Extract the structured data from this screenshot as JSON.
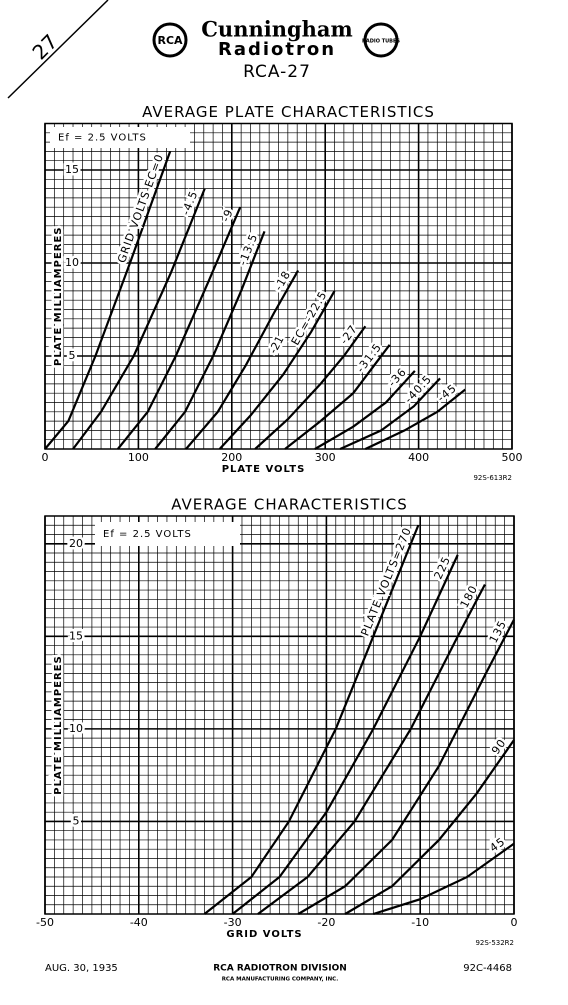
{
  "header": {
    "corner_number": "27",
    "brand": "Cunningham",
    "brand_line2": "Radiotron",
    "logo_left": "RCA",
    "logo_right": "RADIO TUBES",
    "model": "RCA-27"
  },
  "chart_data": [
    {
      "type": "line",
      "title": "AVERAGE PLATE CHARACTERISTICS",
      "xlabel": "PLATE VOLTS",
      "ylabel": "PLATE MILLIAMPERES",
      "note": "Ef = 2.5 VOLTS",
      "code": "92S-613R2",
      "xlim": [
        0,
        500
      ],
      "ylim": [
        0,
        17.5
      ],
      "xticks": [
        0,
        100,
        200,
        300,
        400,
        500
      ],
      "yticks": [
        5,
        10,
        15
      ],
      "grid": true,
      "minor_grid": {
        "x": 10,
        "y": 0.5
      },
      "annotations": [
        "-21"
      ],
      "series": [
        {
          "name": "GRID VOLTS EC=0",
          "color": "#000000",
          "x": [
            0,
            25,
            54,
            91,
            134
          ],
          "values": [
            0,
            1.5,
            5,
            10,
            16
          ]
        },
        {
          "name": "-4.5",
          "color": "#000000",
          "x": [
            30,
            60,
            95,
            135,
            171
          ],
          "values": [
            0,
            2,
            5,
            9.5,
            14
          ]
        },
        {
          "name": "-9",
          "color": "#000000",
          "x": [
            78,
            110,
            140,
            175,
            209
          ],
          "values": [
            0,
            2,
            5,
            9,
            13
          ]
        },
        {
          "name": "-13.5",
          "color": "#000000",
          "x": [
            118,
            150,
            180,
            210,
            235
          ],
          "values": [
            0,
            2,
            5,
            8.5,
            11.7
          ]
        },
        {
          "name": "-18",
          "color": "#000000",
          "x": [
            151,
            185,
            215,
            245,
            271
          ],
          "values": [
            0,
            2,
            4.5,
            7.3,
            9.6
          ]
        },
        {
          "name": "EC=-22.5",
          "color": "#000000",
          "x": [
            187,
            220,
            255,
            285,
            310
          ],
          "values": [
            0,
            1.8,
            4,
            6.3,
            8.5
          ]
        },
        {
          "name": "-27",
          "color": "#000000",
          "x": [
            225,
            260,
            295,
            320,
            343
          ],
          "values": [
            0,
            1.6,
            3.5,
            5,
            6.6
          ]
        },
        {
          "name": "-31.5",
          "color": "#000000",
          "x": [
            257,
            295,
            330,
            369
          ],
          "values": [
            0,
            1.5,
            3,
            5.6
          ]
        },
        {
          "name": "-36",
          "color": "#000000",
          "x": [
            289,
            330,
            365,
            396
          ],
          "values": [
            0,
            1.2,
            2.5,
            4.2
          ]
        },
        {
          "name": "-40.5",
          "color": "#000000",
          "x": [
            316,
            360,
            395,
            423
          ],
          "values": [
            0,
            1,
            2.3,
            3.8
          ]
        },
        {
          "name": "-45",
          "color": "#000000",
          "x": [
            343,
            385,
            420,
            450
          ],
          "values": [
            0,
            1,
            2,
            3.2
          ]
        }
      ]
    },
    {
      "type": "line",
      "title": "AVERAGE CHARACTERISTICS",
      "xlabel": "GRID VOLTS",
      "ylabel": "PLATE MILLIAMPERES",
      "note": "Ef = 2.5 VOLTS",
      "code": "92S-532R2",
      "xlim": [
        -50,
        0
      ],
      "ylim": [
        0,
        21.5
      ],
      "xticks": [
        -50,
        -40,
        -30,
        -20,
        -10,
        0
      ],
      "yticks": [
        5,
        10,
        15,
        20
      ],
      "grid": true,
      "minor_grid": {
        "x": 1,
        "y": 0.5
      },
      "series": [
        {
          "name": "PLATE VOLTS=270",
          "color": "#000000",
          "x": [
            -33,
            -28,
            -24,
            -19,
            -15,
            -10.2
          ],
          "values": [
            0,
            2,
            5,
            10,
            15,
            21
          ]
        },
        {
          "name": "225",
          "color": "#000000",
          "x": [
            -30,
            -25,
            -20,
            -15,
            -10,
            -6
          ],
          "values": [
            0,
            2,
            5.5,
            10,
            15,
            19.4
          ]
        },
        {
          "name": "180",
          "color": "#000000",
          "x": [
            -27.3,
            -22,
            -17,
            -11,
            -6,
            -3.1
          ],
          "values": [
            0,
            2,
            5,
            10,
            15,
            17.8
          ]
        },
        {
          "name": "135",
          "color": "#000000",
          "x": [
            -23,
            -18,
            -13,
            -8,
            -3,
            0
          ],
          "values": [
            0,
            1.5,
            4,
            8,
            13,
            15.9
          ]
        },
        {
          "name": "90",
          "color": "#000000",
          "x": [
            -18,
            -13,
            -8,
            -4,
            0
          ],
          "values": [
            0,
            1.5,
            4,
            6.5,
            9.4
          ]
        },
        {
          "name": "45",
          "color": "#000000",
          "x": [
            -15,
            -10,
            -5,
            0
          ],
          "values": [
            0,
            0.8,
            2,
            3.8
          ]
        }
      ]
    }
  ],
  "footer": {
    "date": "AUG. 30, 1935",
    "division": "RCA RADIOTRON DIVISION",
    "company": "RCA MANUFACTURING COMPANY, INC.",
    "code": "92C-4468"
  }
}
